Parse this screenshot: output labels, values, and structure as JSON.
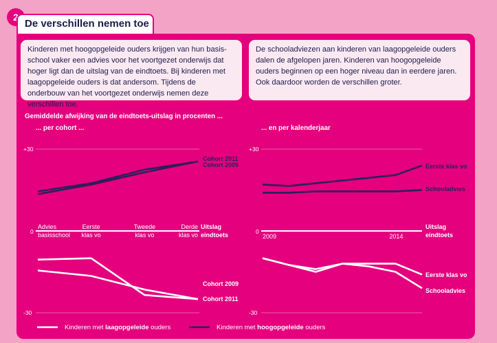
{
  "header": {
    "number": "2",
    "title": "De verschillen nemen toe"
  },
  "intro_left": "Kinderen met hoogopgeleide ouders krijgen van hun basis-school vaker een advies voor het voortgezet onderwijs dat hoger ligt dan de uitslag van de eindtoets. Bij kinderen met laagopgeleide ouders is dat andersom. Tijdens de onderbouw van het voortgezet onderwijs nemen deze verschillen toe.",
  "intro_right": "De schooladviezen aan kinderen van laagopgeleide ouders dalen de afgelopen jaren. Kinderen van hoogopgeleide ouders beginnen op een hoger niveau dan in eerdere jaren. Ook daardoor worden de verschillen groter.",
  "colors": {
    "background": "#f3a3c5",
    "panel": "#e5007e",
    "high": "#2a1f5c",
    "low": "#ffffff",
    "textbox": "#fbe9f2"
  },
  "chart_data": [
    {
      "type": "line",
      "title": "Gemiddelde afwijking van de eindtoets-uitslag  in procenten ...",
      "subtitle": "... per cohort ...",
      "categories": [
        "Advies basisschool",
        "Eerste klas vo",
        "Tweede klas vo",
        "Derde klas vo"
      ],
      "category_labels": [
        [
          "Advies",
          "basisschool"
        ],
        [
          "Eerste",
          "klas vo"
        ],
        [
          "Tweede",
          "klas vo"
        ],
        [
          "Derde",
          "klas vo"
        ]
      ],
      "baseline_label": [
        "Uitslag",
        "eindtoets"
      ],
      "ylim": [
        -30,
        30
      ],
      "yticks": [
        "+30",
        "0",
        "-30"
      ],
      "series": [
        {
          "name": "Cohort 2011",
          "group": "high",
          "values": [
            14.5,
            17.5,
            22.5,
            25.5
          ]
        },
        {
          "name": "Cohort 2009",
          "group": "high",
          "values": [
            13.5,
            17,
            21.5,
            25.5
          ]
        },
        {
          "name": "Cohort 2009",
          "group": "low",
          "values": [
            -14.5,
            -16.5,
            -21.5,
            -25
          ]
        },
        {
          "name": "Cohort 2011",
          "group": "low",
          "values": [
            -10.5,
            -10,
            -23.5,
            -25
          ]
        }
      ],
      "series_labels": [
        "Cohort 2011",
        "Cohort 2009",
        "Cohort 2009",
        "Cohort 2011"
      ]
    },
    {
      "type": "line",
      "subtitle": "... en per kalenderjaar",
      "x": [
        2009,
        2010,
        2011,
        2012,
        2013,
        2014,
        2015
      ],
      "xtick_labels": [
        "2009",
        "2014"
      ],
      "baseline_label": [
        "Uitslag",
        "eindtoets"
      ],
      "ylim": [
        -30,
        30
      ],
      "yticks": [
        "+30",
        "0",
        "-30"
      ],
      "series": [
        {
          "name": "Eerste klas vo",
          "group": "high",
          "values": [
            17,
            16.5,
            17.5,
            18.5,
            19.5,
            20.5,
            24
          ]
        },
        {
          "name": "Schooladvies",
          "group": "high",
          "values": [
            14,
            14,
            14.5,
            14.5,
            14.5,
            14.5,
            15
          ]
        },
        {
          "name": "Eerste klas vo",
          "group": "low",
          "values": [
            -10,
            -12.5,
            -15,
            -12,
            -12,
            -12,
            -16
          ]
        },
        {
          "name": "Schooladvies",
          "group": "low",
          "values": [
            -10,
            -12.5,
            -14,
            -12,
            -13,
            -15,
            -21
          ]
        }
      ],
      "series_labels": [
        "Eerste klas vo",
        "Schooladvies",
        "Eerste klas vo",
        "Schooladvies"
      ]
    }
  ],
  "legend": {
    "low": {
      "prefix": "Kinderen met ",
      "bold": "laagopgeleide",
      "suffix": " ouders"
    },
    "high": {
      "prefix": "Kinderen met ",
      "bold": "hoogopgeleide",
      "suffix": " ouders"
    }
  }
}
